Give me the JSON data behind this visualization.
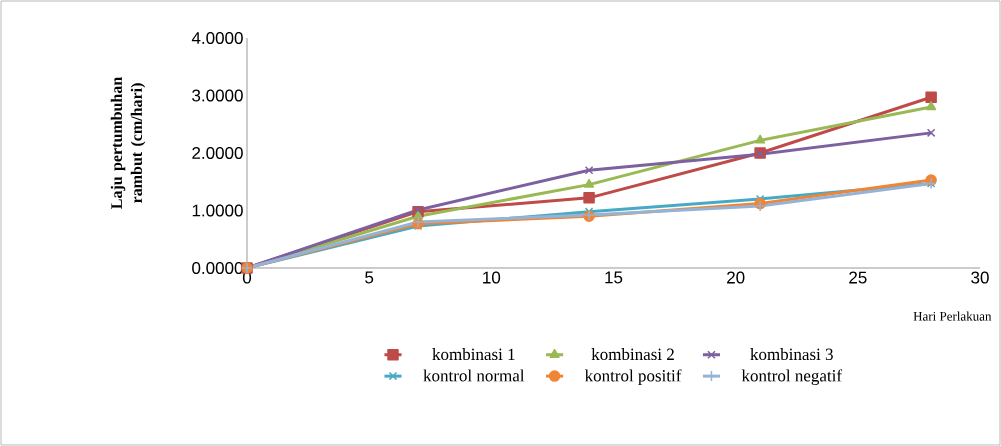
{
  "chart_data": {
    "type": "line",
    "xlabel": "Hari Perlakuan",
    "ylabel": "Laju pertumbuhan rambut (cm/hari)",
    "x": [
      0,
      7,
      14,
      21,
      28
    ],
    "series": [
      {
        "name": "kombinasi 1",
        "color": "#be4b48",
        "marker": "square",
        "values": [
          0,
          0.98,
          1.22,
          2.0,
          2.97
        ]
      },
      {
        "name": "kombinasi 2",
        "color": "#98b954",
        "marker": "triangle",
        "values": [
          0,
          0.9,
          1.45,
          2.22,
          2.8
        ]
      },
      {
        "name": "kombinasi 3",
        "color": "#7d60a0",
        "marker": "cross",
        "values": [
          0,
          1.01,
          1.7,
          1.98,
          2.35
        ]
      },
      {
        "name": "kontrol normal",
        "color": "#46aac5",
        "marker": "cross",
        "values": [
          0,
          0.73,
          0.98,
          1.2,
          1.47
        ]
      },
      {
        "name": "kontrol positif",
        "color": "#f08535",
        "marker": "circle",
        "values": [
          0,
          0.77,
          0.9,
          1.12,
          1.53
        ]
      },
      {
        "name": "kontrol negatif",
        "color": "#95b3d7",
        "marker": "plus",
        "values": [
          0,
          0.8,
          0.92,
          1.08,
          1.47
        ]
      }
    ],
    "xlim": [
      0,
      30
    ],
    "xticks": [
      0,
      5,
      10,
      15,
      20,
      25,
      30
    ],
    "ylim": [
      0,
      4
    ],
    "yticks": [
      {
        "value": 0,
        "label": "0.0000"
      },
      {
        "value": 1,
        "label": "1.0000"
      },
      {
        "value": 2,
        "label": "2.0000"
      },
      {
        "value": 3,
        "label": "3.0000"
      },
      {
        "value": 4,
        "label": "4.0000"
      }
    ],
    "grid": false,
    "legend": "bottom",
    "line_style": "solid"
  }
}
